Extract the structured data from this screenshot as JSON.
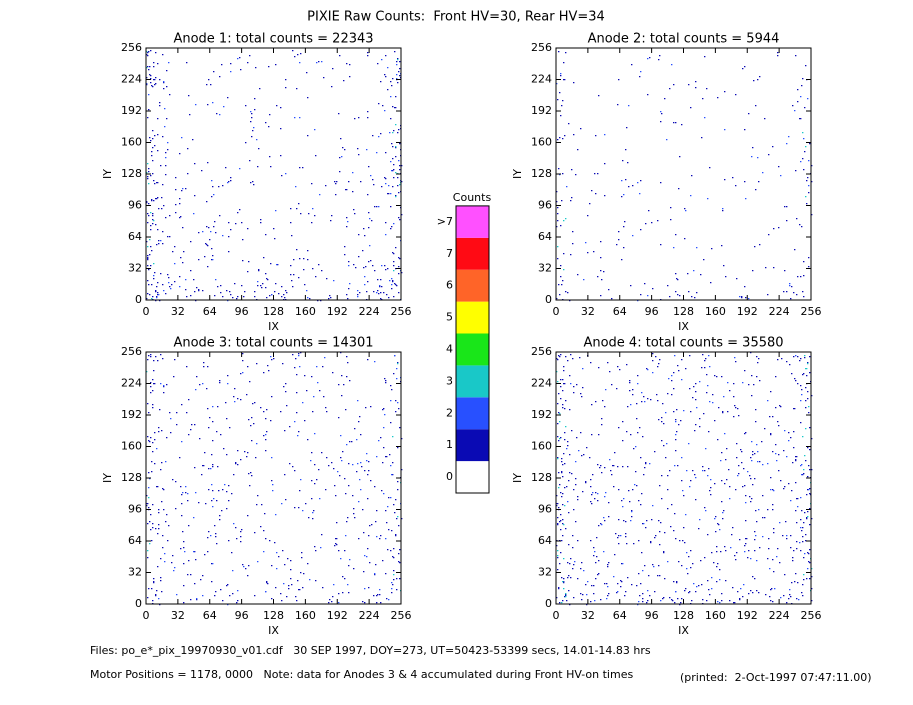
{
  "chart_data": [
    {
      "type": "image",
      "title": "Anode 1: total counts = 22343",
      "xlabel": "IX",
      "ylabel": "IY",
      "xlim": [
        0,
        256
      ],
      "ylim": [
        0,
        256
      ],
      "xticks": [
        0,
        32,
        64,
        96,
        128,
        160,
        192,
        224,
        256
      ],
      "yticks": [
        0,
        32,
        64,
        96,
        128,
        160,
        192,
        224,
        256
      ]
    },
    {
      "type": "image",
      "title": "Anode 2: total counts = 5944",
      "xlabel": "IX",
      "ylabel": "IY",
      "xlim": [
        0,
        256
      ],
      "ylim": [
        0,
        256
      ],
      "xticks": [
        0,
        32,
        64,
        96,
        128,
        160,
        192,
        224,
        256
      ],
      "yticks": [
        0,
        32,
        64,
        96,
        128,
        160,
        192,
        224,
        256
      ]
    },
    {
      "type": "image",
      "title": "Anode 3: total counts = 14301",
      "xlabel": "IX",
      "ylabel": "IY",
      "xlim": [
        0,
        256
      ],
      "ylim": [
        0,
        256
      ],
      "xticks": [
        0,
        32,
        64,
        96,
        128,
        160,
        192,
        224,
        256
      ],
      "yticks": [
        0,
        32,
        64,
        96,
        128,
        160,
        192,
        224,
        256
      ]
    },
    {
      "type": "image",
      "title": "Anode 4: total counts = 35580",
      "xlabel": "IX",
      "ylabel": "IY",
      "xlim": [
        0,
        256
      ],
      "ylim": [
        0,
        256
      ],
      "xticks": [
        0,
        32,
        64,
        96,
        128,
        160,
        192,
        224,
        256
      ],
      "yticks": [
        0,
        32,
        64,
        96,
        128,
        160,
        192,
        224,
        256
      ]
    }
  ],
  "title": "PIXIE Raw Counts:  Front HV=30, Rear HV=34",
  "colorbar": {
    "title": "Counts",
    "levels": [
      {
        "label": "0",
        "color": "#ffffff"
      },
      {
        "label": "1",
        "color": "#0a0ab4"
      },
      {
        "label": "2",
        "color": "#2850ff"
      },
      {
        "label": "3",
        "color": "#19c8c8"
      },
      {
        "label": "4",
        "color": "#19e619"
      },
      {
        "label": "5",
        "color": "#ffff00"
      },
      {
        "label": "6",
        "color": "#ff6428"
      },
      {
        "label": "7",
        "color": "#ff0a14"
      },
      {
        "label": ">7",
        "color": "#ff50ff"
      }
    ]
  },
  "footer": {
    "files": "Files: po_e*_pix_19970930_v01.cdf   30 SEP 1997, DOY=273, UT=50423-53399 secs, 14.01-14.83 hrs",
    "motor": "Motor Positions = 1178, 0000   Note: data for Anodes 3 & 4 accumulated during Front HV-on times",
    "printed": "(printed:  2-Oct-1997 07:47:11.00)"
  }
}
